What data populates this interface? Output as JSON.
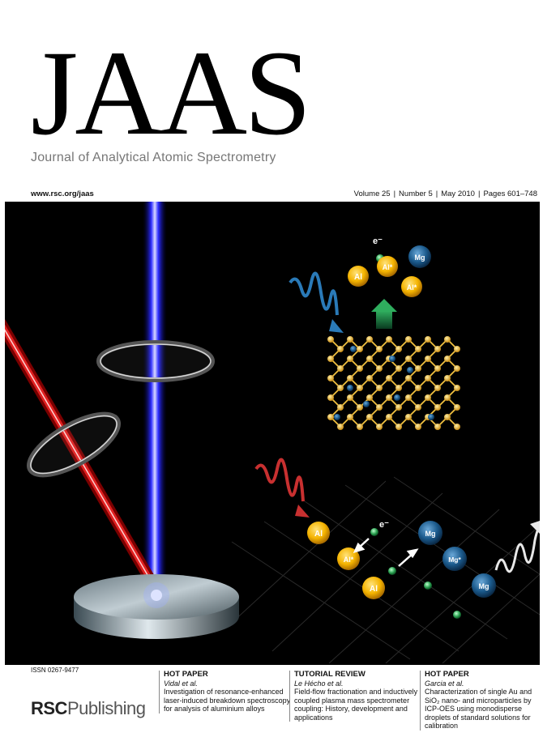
{
  "journal": {
    "logo": "JAAS",
    "subtitle": "Journal of Analytical Atomic Spectrometry",
    "url": "www.rsc.org/jaas",
    "volume": "Volume 25",
    "number": "Number 5",
    "date": "May 2010",
    "pages": "Pages 601–748"
  },
  "art": {
    "labels": {
      "al": "Al",
      "al_star": "Al*",
      "mg": "Mg",
      "mg_star": "Mg*",
      "electron": "e⁻"
    },
    "colors": {
      "background": "#000000",
      "al": "#f5b400",
      "mg": "#1b5a8c",
      "laser_red": "#e02020",
      "beam_blue": "#3a3aff",
      "arrow_green": "#1d8a4a"
    }
  },
  "footer": {
    "issn": "ISSN 0267-9477",
    "publisher_bold": "RSC",
    "publisher_light": "Publishing",
    "articles": [
      {
        "tag": "HOT PAPER",
        "author": "Vidal et al.",
        "title": "Investigation of resonance-enhanced laser-induced breakdown spectroscopy for analysis of aluminium alloys"
      },
      {
        "tag": "TUTORIAL REVIEW",
        "author": "Le Hécho et al.",
        "title": "Field-flow fractionation and inductively coupled plasma mass spectrometer coupling: History, development and applications"
      },
      {
        "tag": "HOT PAPER",
        "author": "Garcia et al.",
        "title": "Characterization of single Au and SiO₂ nano- and microparticles by ICP-OES using monodisperse droplets of standard solutions for calibration"
      }
    ]
  }
}
